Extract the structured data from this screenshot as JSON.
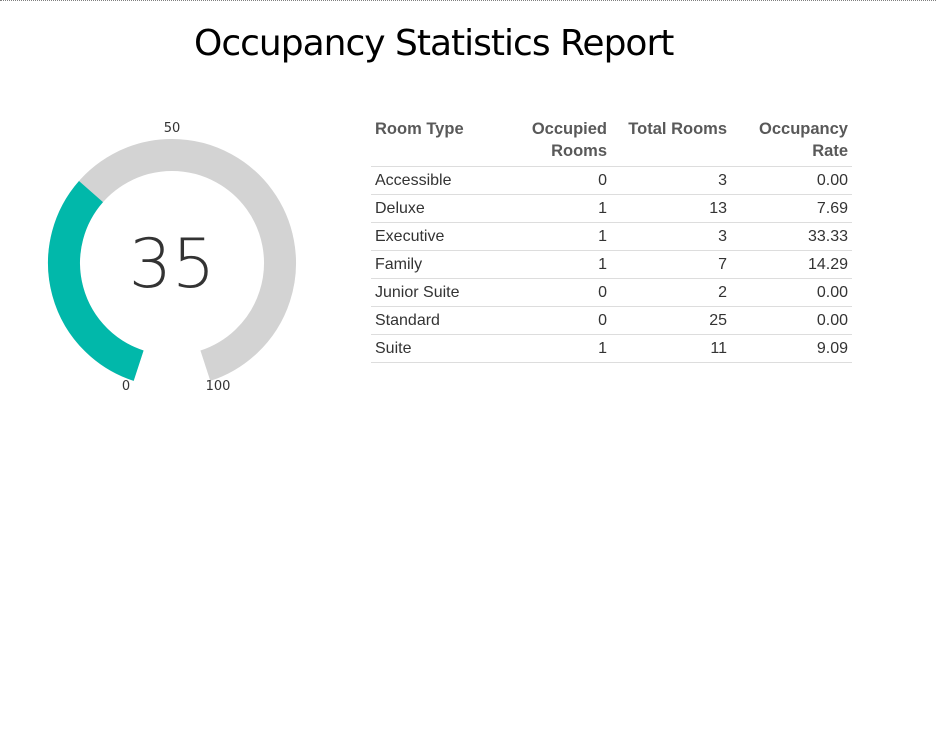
{
  "report": {
    "title": "Occupancy Statistics Report"
  },
  "gauge": {
    "value": 35,
    "min": 0,
    "max": 100,
    "min_label": "0",
    "mid_label": "50",
    "max_label": "100",
    "value_label": "35",
    "fill_color": "#01b8aa",
    "track_color": "#d3d3d3"
  },
  "table": {
    "headers": {
      "room_type": "Room Type",
      "occupied_rooms_line1": "Occupied",
      "occupied_rooms_line2": "Rooms",
      "total_rooms": "Total Rooms",
      "occupancy_rate_line1": "Occupancy",
      "occupancy_rate_line2": "Rate"
    },
    "rows": [
      {
        "room_type": "Accessible",
        "occupied": "0",
        "total": "3",
        "rate": "0.00"
      },
      {
        "room_type": "Deluxe",
        "occupied": "1",
        "total": "13",
        "rate": "7.69"
      },
      {
        "room_type": "Executive",
        "occupied": "1",
        "total": "3",
        "rate": "33.33"
      },
      {
        "room_type": "Family",
        "occupied": "1",
        "total": "7",
        "rate": "14.29"
      },
      {
        "room_type": "Junior Suite",
        "occupied": "0",
        "total": "2",
        "rate": "0.00"
      },
      {
        "room_type": "Standard",
        "occupied": "0",
        "total": "25",
        "rate": "0.00"
      },
      {
        "room_type": "Suite",
        "occupied": "1",
        "total": "11",
        "rate": "9.09"
      }
    ]
  }
}
